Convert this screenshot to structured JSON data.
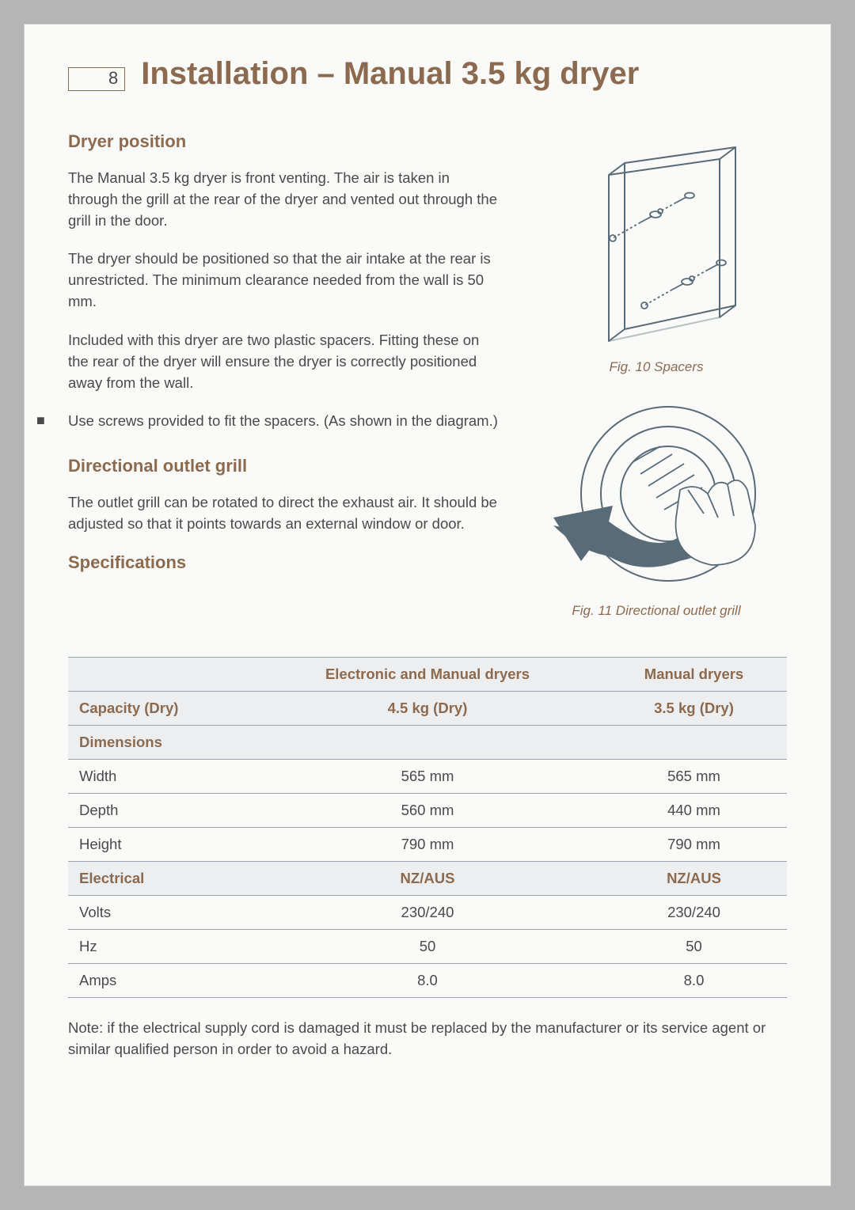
{
  "page_number": "8",
  "title": "Installation – Manual 3.5 kg dryer",
  "sections": {
    "dryer_position": {
      "heading": "Dryer position",
      "p1": "The Manual 3.5 kg dryer is front venting. The air is taken in through the grill at the rear of the dryer and vented out through the grill in the door.",
      "p2": "The dryer should be positioned so that the air intake at the rear is unrestricted. The minimum clearance needed from the wall is 50 mm.",
      "p3": "Included with this dryer are two plastic spacers. Fitting these on the rear of the dryer will ensure the dryer is correctly positioned away from the wall.",
      "bullet": "Use screws provided to fit the spacers. (As shown in the diagram.)"
    },
    "directional": {
      "heading": "Directional outlet grill",
      "p1": "The outlet grill can be rotated to direct the exhaust air. It should be adjusted so that it points towards an external window or door."
    },
    "specs_heading": "Specifications"
  },
  "figures": {
    "fig10": "Fig. 10 Spacers",
    "fig11": "Fig. 11 Directional outlet grill"
  },
  "table": {
    "col1_header": "Electronic and Manual dryers",
    "col2_header": "Manual dryers",
    "rows": [
      {
        "label": "Capacity (Dry)",
        "c1": "4.5 kg (Dry)",
        "c2": "3.5 kg (Dry)",
        "head": true
      },
      {
        "label": "Dimensions",
        "c1": "",
        "c2": "",
        "head": true
      },
      {
        "label": "Width",
        "c1": "565 mm",
        "c2": "565 mm",
        "head": false
      },
      {
        "label": "Depth",
        "c1": "560 mm",
        "c2": "440 mm",
        "head": false
      },
      {
        "label": "Height",
        "c1": "790 mm",
        "c2": "790 mm",
        "head": false
      },
      {
        "label": "Electrical",
        "c1": "NZ/AUS",
        "c2": "NZ/AUS",
        "head": true
      },
      {
        "label": "Volts",
        "c1": "230/240",
        "c2": "230/240",
        "head": false
      },
      {
        "label": "Hz",
        "c1": "50",
        "c2": "50",
        "head": false
      },
      {
        "label": "Amps",
        "c1": "8.0",
        "c2": "8.0",
        "head": false
      }
    ]
  },
  "note": "Note: if the electrical supply cord is damaged it must be replaced by the manufacturer or its service agent or similar qualified person in order to avoid a hazard.",
  "colors": {
    "accent": "#8c6a4f",
    "text": "#4a4a4a",
    "shade": "#eceef0",
    "rule": "#9aa4af",
    "page_bg": "#fafaf8",
    "outer_bg": "#b5b5b5",
    "diagram_stroke": "#5a6b78"
  }
}
